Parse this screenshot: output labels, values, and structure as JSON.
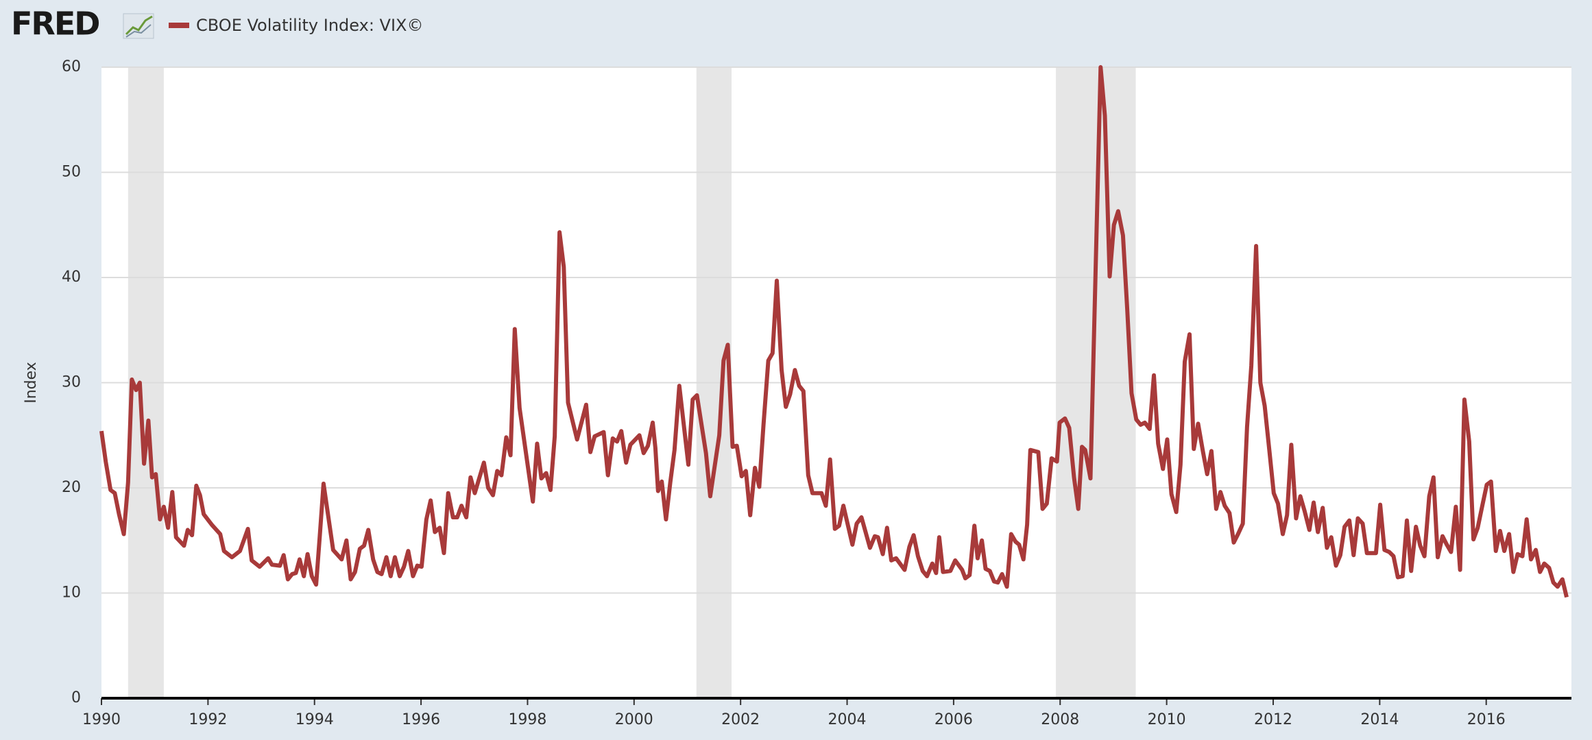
{
  "brand": "FRED",
  "chart_data": {
    "type": "line",
    "ylabel": "Index",
    "xlim": [
      1990,
      2017.6
    ],
    "xticks": [
      1990,
      1992,
      1994,
      1996,
      1998,
      2000,
      2002,
      2004,
      2006,
      2008,
      2010,
      2012,
      2014,
      2016
    ],
    "ylim": [
      0,
      60
    ],
    "yticks": [
      0,
      10,
      20,
      30,
      40,
      50,
      60
    ],
    "grid": true,
    "shaded_ranges": [
      [
        1990.5,
        1991.17
      ],
      [
        2001.17,
        2001.83
      ],
      [
        2007.92,
        2009.42
      ]
    ],
    "shade_color": "#e6e6e6",
    "x": [
      1990,
      1990.08,
      1990.17,
      1990.25,
      1990.33,
      1990.42,
      1990.5,
      1990.57,
      1990.65,
      1990.72,
      1990.8,
      1990.88,
      1990.95,
      1991.02,
      1991.1,
      1991.17,
      1991.25,
      1991.33,
      1991.4,
      1991.55,
      1991.62,
      1991.7,
      1991.78,
      1991.85,
      1991.92,
      1992.07,
      1992.23,
      1992.3,
      1992.45,
      1992.6,
      1992.75,
      1992.82,
      1992.97,
      1993.13,
      1993.2,
      1993.35,
      1993.42,
      1993.5,
      1993.58,
      1993.65,
      1993.72,
      1993.8,
      1993.87,
      1993.95,
      1994.03,
      1994.1,
      1994.17,
      1994.35,
      1994.51,
      1994.6,
      1994.68,
      1994.76,
      1994.85,
      1994.93,
      1995.01,
      1995.1,
      1995.18,
      1995.26,
      1995.35,
      1995.43,
      1995.51,
      1995.6,
      1995.68,
      1995.76,
      1995.85,
      1995.93,
      1996.01,
      1996.1,
      1996.18,
      1996.26,
      1996.35,
      1996.43,
      1996.51,
      1996.6,
      1996.68,
      1996.76,
      1996.85,
      1996.93,
      1997.01,
      1997.18,
      1997.26,
      1997.35,
      1997.43,
      1997.51,
      1997.6,
      1997.68,
      1997.76,
      1997.85,
      1998.01,
      1998.1,
      1998.18,
      1998.26,
      1998.35,
      1998.43,
      1998.51,
      1998.6,
      1998.68,
      1998.76,
      1998.93,
      1999.1,
      1999.18,
      1999.26,
      1999.43,
      1999.51,
      1999.6,
      1999.68,
      1999.76,
      1999.85,
      1999.93,
      2000.1,
      2000.18,
      2000.26,
      2000.35,
      2000.4,
      2000.45,
      2000.52,
      2000.6,
      2000.68,
      2000.76,
      2000.85,
      2001.02,
      2001.1,
      2001.18,
      2001.35,
      2001.43,
      2001.6,
      2001.68,
      2001.76,
      2001.85,
      2001.93,
      2002.02,
      2002.1,
      2002.18,
      2002.27,
      2002.35,
      2002.43,
      2002.52,
      2002.6,
      2002.68,
      2002.77,
      2002.85,
      2002.93,
      2003.02,
      2003.1,
      2003.18,
      2003.27,
      2003.35,
      2003.52,
      2003.6,
      2003.68,
      2003.77,
      2003.85,
      2003.93,
      2004.1,
      2004.18,
      2004.27,
      2004.43,
      2004.52,
      2004.58,
      2004.67,
      2004.75,
      2004.83,
      2004.92,
      2005.08,
      2005.17,
      2005.25,
      2005.33,
      2005.42,
      2005.5,
      2005.6,
      2005.67,
      2005.73,
      2005.8,
      2005.94,
      2006.03,
      2006.16,
      2006.22,
      2006.3,
      2006.39,
      2006.45,
      2006.53,
      2006.6,
      2006.68,
      2006.76,
      2006.83,
      2006.91,
      2007,
      2007.08,
      2007.16,
      2007.23,
      2007.31,
      2007.38,
      2007.44,
      2007.59,
      2007.67,
      2007.75,
      2007.84,
      2007.94,
      2007.99,
      2008.09,
      2008.17,
      2008.26,
      2008.34,
      2008.41,
      2008.47,
      2008.57,
      2008.76,
      2008.84,
      2008.93,
      2009.01,
      2009.09,
      2009.18,
      2009.26,
      2009.34,
      2009.43,
      2009.51,
      2009.59,
      2009.68,
      2009.76,
      2009.84,
      2009.93,
      2010.01,
      2010.09,
      2010.18,
      2010.26,
      2010.34,
      2010.43,
      2010.51,
      2010.59,
      2010.68,
      2010.76,
      2010.84,
      2010.93,
      2011.01,
      2011.09,
      2011.18,
      2011.26,
      2011.34,
      2011.43,
      2011.51,
      2011.59,
      2011.68,
      2011.76,
      2011.84,
      2011.93,
      2012.01,
      2012.09,
      2012.18,
      2012.26,
      2012.34,
      2012.43,
      2012.51,
      2012.59,
      2012.68,
      2012.76,
      2012.84,
      2012.93,
      2013.01,
      2013.09,
      2013.18,
      2013.26,
      2013.34,
      2013.43,
      2013.51,
      2013.59,
      2013.68,
      2013.76,
      2013.84,
      2013.93,
      2014.01,
      2014.09,
      2014.18,
      2014.26,
      2014.34,
      2014.43,
      2014.51,
      2014.59,
      2014.68,
      2014.76,
      2014.84,
      2014.93,
      2015.01,
      2015.09,
      2015.18,
      2015.26,
      2015.34,
      2015.43,
      2015.51,
      2015.59,
      2015.68,
      2015.76,
      2015.84,
      2015.93,
      2016.01,
      2016.09,
      2016.18,
      2016.26,
      2016.34,
      2016.43,
      2016.51,
      2016.59,
      2016.68,
      2016.76,
      2016.84,
      2016.93,
      2017.01,
      2017.09,
      2017.18,
      2017.26,
      2017.34,
      2017.43,
      2017.51
    ],
    "series": [
      {
        "name": "CBOE Volatility Index: VIX©",
        "color": "#a83a3a",
        "values": [
          25.4,
          22.5,
          19.8,
          19.5,
          17.5,
          15.6,
          20.5,
          30.3,
          29.3,
          30,
          22.3,
          26.4,
          21,
          21.3,
          17,
          18.2,
          16.2,
          19.6,
          15.3,
          14.5,
          16,
          15.5,
          20.2,
          19.3,
          17.5,
          16.5,
          15.6,
          14,
          13.4,
          14,
          16.1,
          13.1,
          12.5,
          13.3,
          12.7,
          12.6,
          13.6,
          11.3,
          11.8,
          11.9,
          13.2,
          11.6,
          13.7,
          11.6,
          10.8,
          15.5,
          20.4,
          14.1,
          13.2,
          15,
          11.3,
          12,
          14.2,
          14.5,
          16,
          13.2,
          12,
          11.8,
          13.4,
          11.6,
          13.4,
          11.6,
          12.5,
          14,
          11.6,
          12.6,
          12.5,
          17,
          18.8,
          15.8,
          16.2,
          13.8,
          19.5,
          17.2,
          17.2,
          18.3,
          17.2,
          21,
          19.5,
          22.4,
          20,
          19.3,
          21.6,
          21.2,
          24.8,
          23.1,
          35.1,
          27.6,
          21.9,
          18.7,
          24.2,
          20.9,
          21.4,
          19.8,
          24.9,
          44.3,
          41,
          28.1,
          24.6,
          27.9,
          23.4,
          24.9,
          25.3,
          21.2,
          24.7,
          24.4,
          25.4,
          22.4,
          24.1,
          25,
          23.3,
          24,
          26.2,
          23.8,
          19.7,
          20.6,
          17,
          20.5,
          23.6,
          29.7,
          22.2,
          28.4,
          28.8,
          23.3,
          19.2,
          25,
          32.1,
          33.6,
          23.9,
          24,
          21.1,
          21.6,
          17.4,
          21.9,
          20.1,
          26,
          32.1,
          32.8,
          39.7,
          31.2,
          27.7,
          28.9,
          31.2,
          29.7,
          29.2,
          21.2,
          19.5,
          19.5,
          18.3,
          22.7,
          16.1,
          16.4,
          18.3,
          14.6,
          16.6,
          17.2,
          14.3,
          15.4,
          15.3,
          13.7,
          16.2,
          13.1,
          13.3,
          12.2,
          14.4,
          15.5,
          13.5,
          12.1,
          11.6,
          12.8,
          11.9,
          15.3,
          12,
          12.1,
          13.1,
          12.2,
          11.4,
          11.7,
          16.4,
          13.3,
          15,
          12.3,
          12.1,
          11.1,
          11,
          11.8,
          10.6,
          15.6,
          14.9,
          14.6,
          13.2,
          16.5,
          23.6,
          23.4,
          18,
          18.5,
          22.8,
          22.5,
          26.2,
          26.6,
          25.7,
          21,
          18,
          23.9,
          23.6,
          20.9,
          60,
          55.4,
          40.1,
          45,
          46.3,
          44,
          37,
          29,
          26.5,
          26,
          26.2,
          25.6,
          30.7,
          24.2,
          21.8,
          24.6,
          19.4,
          17.7,
          22.2,
          32,
          34.6,
          23.7,
          26.1,
          23.5,
          21.3,
          23.5,
          18,
          19.6,
          18.3,
          17.6,
          14.8,
          15.6,
          16.6,
          25.8,
          31.6,
          43,
          30,
          27.8,
          23.5,
          19.5,
          18.5,
          15.6,
          17.4,
          24.1,
          17.1,
          19.2,
          17.8,
          16,
          18.6,
          15.8,
          18.1,
          14.3,
          15.3,
          12.6,
          13.6,
          16.3,
          16.9,
          13.6,
          17.1,
          16.6,
          13.8,
          13.8,
          13.8,
          18.4,
          14.1,
          13.9,
          13.5,
          11.5,
          11.6,
          16.9,
          12.1,
          16.3,
          14.5,
          13.5,
          19.2,
          21,
          13.4,
          15.4,
          14.6,
          13.9,
          18.2,
          12.2,
          28.4,
          24.4,
          15.1,
          16.2,
          18.4,
          20.3,
          20.6,
          14,
          15.9,
          14,
          15.6,
          12,
          13.7,
          13.5,
          17,
          13.2,
          14.1,
          12,
          12.8,
          12.4,
          11,
          10.6,
          11.3,
          9.6
        ]
      }
    ]
  }
}
